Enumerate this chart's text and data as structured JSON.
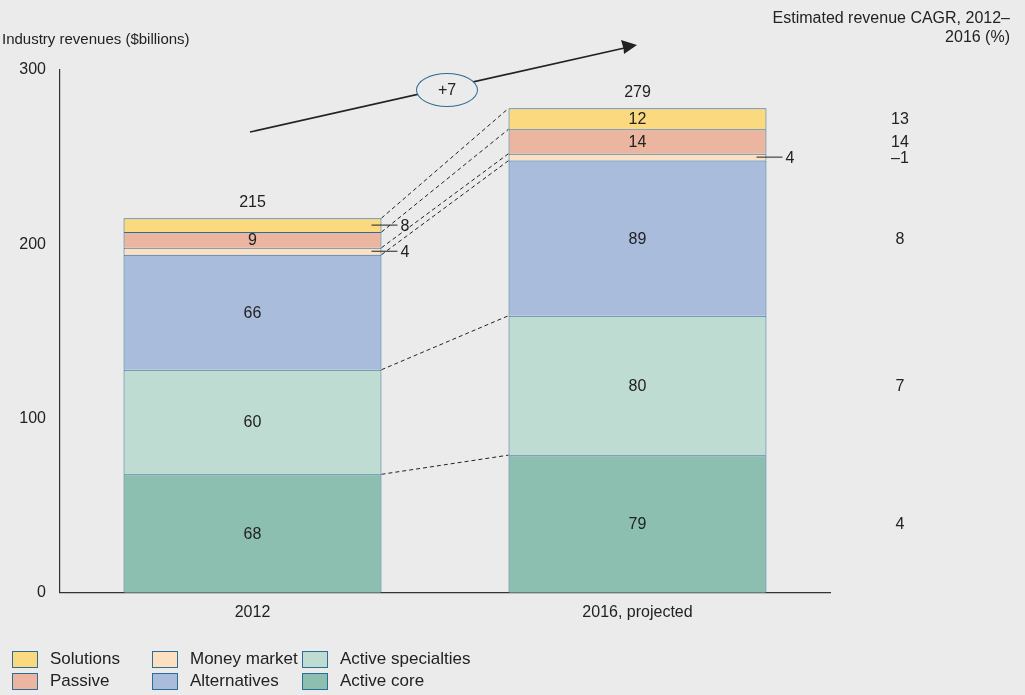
{
  "chart_data": {
    "type": "bar",
    "stacked": true,
    "categories": [
      "2012",
      "2016, projected"
    ],
    "ylabel": "Industry revenues ($billions)",
    "ylim": [
      0,
      300
    ],
    "yticks": [
      0,
      100,
      200,
      300
    ],
    "grid": false,
    "legend": "bottom",
    "data_labels": true,
    "totals": [
      "215",
      "279"
    ],
    "series": [
      {
        "name": "Active core",
        "color": "#8cbfb0",
        "values": [
          68,
          79
        ]
      },
      {
        "name": "Active specialties",
        "color": "#bfdcd3",
        "values": [
          60,
          80
        ]
      },
      {
        "name": "Alternatives",
        "color": "#a9bcdc",
        "values": [
          66,
          89
        ]
      },
      {
        "name": "Money market",
        "color": "#fde0c2",
        "values": [
          4,
          4
        ]
      },
      {
        "name": "Passive",
        "color": "#ebb5a0",
        "values": [
          9,
          14
        ]
      },
      {
        "name": "Solutions",
        "color": "#fbd97e",
        "values": [
          8,
          12
        ]
      }
    ],
    "annotations": [
      "+7",
      "Estimated revenue CAGR, 2012–2016 (%)",
      "13",
      "14",
      "–1",
      "8",
      "7",
      "4"
    ]
  }
}
